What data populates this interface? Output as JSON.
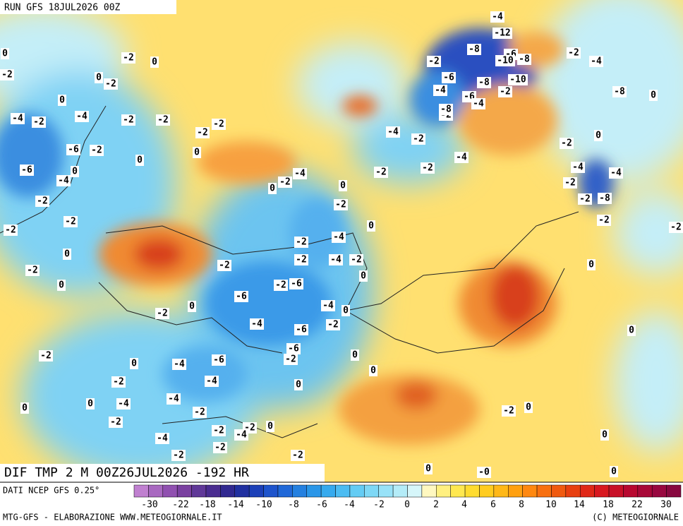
{
  "header": {
    "title": "RUN GFS 18JUL2026 00Z"
  },
  "map": {
    "caption": "DIF TMP 2 M 00Z26JUL2026 -192 HR",
    "labels": [
      "-4",
      "-12",
      "-8",
      "-6",
      "-10",
      "-8",
      "-10",
      "-8",
      "-2",
      "-6",
      "-4",
      "-6",
      "-4",
      "-2",
      "-2",
      "-8",
      "-2",
      "-4",
      "-8",
      "0",
      "0",
      "-2",
      "-4",
      "-4",
      "-2",
      "-2",
      "-8",
      "-2",
      "-2",
      "0",
      "0",
      "-4",
      "-2",
      "-4",
      "-2",
      "-2",
      "-4",
      "-2",
      "0",
      "0",
      "-2",
      "0",
      "-4",
      "-2",
      "-4",
      "-2",
      "-2",
      "0",
      "-6",
      "-2",
      "-6",
      "-4",
      "0",
      "-4",
      "-6",
      "-2",
      "-6",
      "-2",
      "0",
      "0",
      "0",
      "-6",
      "-4",
      "-4",
      "-4",
      "-2",
      "0",
      "-2",
      "-4",
      "0",
      "-2",
      "0",
      "-2",
      "-2",
      "0",
      "-2",
      "-2",
      "0",
      "0",
      "-2",
      "-2",
      "-2",
      "-4",
      "0",
      "-6",
      "-6",
      "-2",
      "0",
      "0",
      "-2",
      "-2",
      "-2",
      "-2",
      "-4",
      "-2",
      "-4",
      "0",
      "-2",
      "0",
      "-2",
      "0",
      "-2",
      "0",
      "-2",
      "0",
      "0",
      "0",
      "-0",
      "0",
      "-2",
      "0",
      "-2",
      "-2",
      "-4",
      "-4",
      "-2",
      "-2"
    ]
  },
  "legend": {
    "source": "DATI NCEP GFS 0.25°",
    "ticks": [
      "-30",
      "-22",
      "-18",
      "-14",
      "-10",
      "-8",
      "-6",
      "-4",
      "-2",
      "0",
      "2",
      "4",
      "6",
      "8",
      "10",
      "14",
      "18",
      "22",
      "30"
    ]
  },
  "footer": {
    "left": "MTG-GFS - ELABORAZIONE WWW.METEOGIORNALE.IT",
    "right": "(C) METEOGIORNALE"
  }
}
